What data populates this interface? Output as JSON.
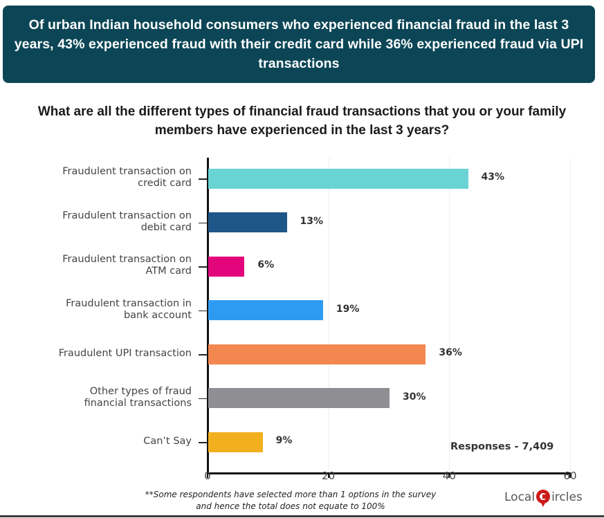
{
  "header": {
    "text": "Of urban Indian household consumers who experienced financial fraud in the last 3 years, 43% experienced fraud with their credit card while 36% experienced fraud via UPI transactions",
    "bg_color": "#0c4656"
  },
  "question": "What are all the different types of financial fraud transactions that you or your family members have experienced in the last 3 years?",
  "responses_label": "Responses - 7,409",
  "footnote": {
    "line1": "**Some respondents have selected more than 1 options in the survey",
    "line2": "and hence the total does not equate to 100%"
  },
  "logo": {
    "prefix": "Local",
    "suffix": "ircles",
    "icon": "location-pin-c-icon",
    "color": "#cc1a1a"
  },
  "chart_data": {
    "type": "bar",
    "orientation": "horizontal",
    "title": "What are all the different types of financial fraud transactions that you or your family members have experienced in the last 3 years?",
    "xlabel": "",
    "ylabel": "",
    "xlim": [
      0,
      60
    ],
    "x_ticks": [
      "0",
      "20",
      "40",
      "60"
    ],
    "grid": true,
    "legend": "none",
    "categories": [
      "Fraudulent transaction on credit card",
      "Fraudulent transaction on debit card",
      "Fraudulent transaction on ATM card",
      "Fraudulent transaction in bank account",
      "Fraudulent UPI transaction",
      "Other types of fraud financial transactions",
      "Can’t Say"
    ],
    "values": [
      43,
      13,
      6,
      19,
      36,
      30,
      9
    ],
    "value_labels": [
      "43%",
      "13%",
      "6%",
      "19%",
      "36%",
      "30%",
      "9%"
    ],
    "colors": [
      "#6ad3d3",
      "#1e5688",
      "#e3057c",
      "#2e9bf2",
      "#f2874f",
      "#8e8e93",
      "#f2b01e"
    ],
    "label_lines": [
      [
        "Fraudulent transaction on",
        "credit card"
      ],
      [
        "Fraudulent transaction on",
        "debit card"
      ],
      [
        "Fraudulent transaction on",
        "ATM card"
      ],
      [
        "Fraudulent transaction in",
        "bank account"
      ],
      [
        "Fraudulent UPI transaction"
      ],
      [
        "Other types of fraud",
        "financial transactions"
      ],
      [
        "Can’t Say"
      ]
    ],
    "annotation": "Responses - 7,409"
  }
}
